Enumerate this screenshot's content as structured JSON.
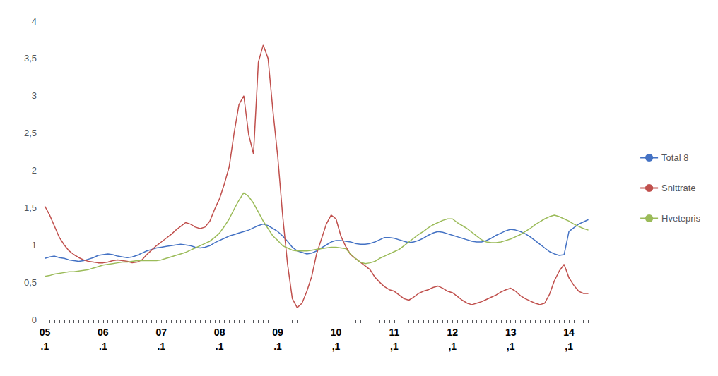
{
  "chart_data": {
    "type": "line",
    "categories": [
      "05\n.1",
      null,
      null,
      null,
      null,
      null,
      null,
      null,
      null,
      null,
      null,
      null,
      "06\n.1",
      null,
      null,
      null,
      null,
      null,
      null,
      null,
      null,
      null,
      null,
      null,
      "07\n.1",
      null,
      null,
      null,
      null,
      null,
      null,
      null,
      null,
      null,
      null,
      null,
      "08\n.1",
      null,
      null,
      null,
      null,
      null,
      null,
      null,
      null,
      null,
      null,
      null,
      "09\n.1",
      null,
      null,
      null,
      null,
      null,
      null,
      null,
      null,
      null,
      null,
      null,
      "10\n,1",
      null,
      null,
      null,
      null,
      null,
      null,
      null,
      null,
      null,
      null,
      null,
      "11\n,1",
      null,
      null,
      null,
      null,
      null,
      null,
      null,
      null,
      null,
      null,
      null,
      "12\n,1",
      null,
      null,
      null,
      null,
      null,
      null,
      null,
      null,
      null,
      null,
      null,
      "13\n,1",
      null,
      null,
      null,
      null,
      null,
      null,
      null,
      null,
      null,
      null,
      null,
      "14\n,1",
      null,
      null,
      null,
      null
    ],
    "series": [
      {
        "name": "Total 8",
        "color": "#4472C4",
        "values": [
          0.82,
          0.84,
          0.85,
          0.83,
          0.82,
          0.8,
          0.79,
          0.78,
          0.79,
          0.81,
          0.83,
          0.86,
          0.87,
          0.88,
          0.87,
          0.85,
          0.84,
          0.83,
          0.84,
          0.86,
          0.89,
          0.92,
          0.94,
          0.96,
          0.97,
          0.98,
          0.99,
          1.0,
          1.01,
          1.0,
          0.99,
          0.97,
          0.96,
          0.97,
          0.99,
          1.03,
          1.06,
          1.09,
          1.12,
          1.14,
          1.16,
          1.18,
          1.2,
          1.23,
          1.26,
          1.28,
          1.26,
          1.22,
          1.18,
          1.12,
          1.05,
          0.97,
          0.92,
          0.9,
          0.88,
          0.89,
          0.92,
          0.96,
          1.0,
          1.04,
          1.06,
          1.06,
          1.05,
          1.04,
          1.02,
          1.01,
          1.01,
          1.02,
          1.04,
          1.07,
          1.1,
          1.1,
          1.09,
          1.07,
          1.05,
          1.03,
          1.04,
          1.06,
          1.09,
          1.13,
          1.16,
          1.18,
          1.17,
          1.15,
          1.13,
          1.11,
          1.09,
          1.07,
          1.05,
          1.04,
          1.04,
          1.06,
          1.09,
          1.13,
          1.16,
          1.19,
          1.21,
          1.2,
          1.18,
          1.15,
          1.11,
          1.06,
          1.01,
          0.96,
          0.91,
          0.88,
          0.86,
          0.87,
          1.18,
          1.23,
          1.28,
          1.31,
          1.34
        ]
      },
      {
        "name": "Snittrate",
        "color": "#C0504D",
        "values": [
          1.52,
          1.4,
          1.25,
          1.1,
          1.0,
          0.92,
          0.87,
          0.83,
          0.8,
          0.78,
          0.77,
          0.76,
          0.76,
          0.77,
          0.79,
          0.8,
          0.79,
          0.78,
          0.76,
          0.77,
          0.8,
          0.87,
          0.93,
          0.99,
          1.04,
          1.09,
          1.14,
          1.2,
          1.25,
          1.3,
          1.28,
          1.24,
          1.22,
          1.24,
          1.32,
          1.48,
          1.62,
          1.82,
          2.05,
          2.5,
          2.88,
          3.0,
          2.48,
          2.22,
          3.45,
          3.68,
          3.5,
          2.8,
          2.18,
          1.4,
          0.75,
          0.28,
          0.16,
          0.22,
          0.38,
          0.58,
          0.88,
          1.08,
          1.28,
          1.4,
          1.35,
          1.12,
          0.98,
          0.87,
          0.82,
          0.77,
          0.72,
          0.67,
          0.57,
          0.5,
          0.44,
          0.4,
          0.38,
          0.33,
          0.28,
          0.26,
          0.3,
          0.35,
          0.38,
          0.4,
          0.43,
          0.45,
          0.42,
          0.38,
          0.36,
          0.31,
          0.26,
          0.22,
          0.2,
          0.22,
          0.24,
          0.27,
          0.3,
          0.33,
          0.37,
          0.4,
          0.42,
          0.38,
          0.32,
          0.28,
          0.25,
          0.22,
          0.2,
          0.22,
          0.34,
          0.52,
          0.65,
          0.74,
          0.56,
          0.46,
          0.38,
          0.35,
          0.35
        ]
      },
      {
        "name": "Hvetepris",
        "color": "#9BBB59",
        "values": [
          0.58,
          0.59,
          0.61,
          0.62,
          0.63,
          0.64,
          0.64,
          0.65,
          0.66,
          0.67,
          0.69,
          0.71,
          0.73,
          0.74,
          0.75,
          0.76,
          0.77,
          0.77,
          0.78,
          0.79,
          0.79,
          0.79,
          0.79,
          0.79,
          0.8,
          0.82,
          0.84,
          0.86,
          0.88,
          0.9,
          0.93,
          0.96,
          0.99,
          1.02,
          1.05,
          1.1,
          1.16,
          1.25,
          1.35,
          1.48,
          1.6,
          1.7,
          1.65,
          1.56,
          1.44,
          1.32,
          1.22,
          1.12,
          1.06,
          0.99,
          0.96,
          0.93,
          0.92,
          0.92,
          0.92,
          0.93,
          0.94,
          0.95,
          0.96,
          0.97,
          0.97,
          0.96,
          0.95,
          0.88,
          0.82,
          0.77,
          0.75,
          0.76,
          0.78,
          0.82,
          0.85,
          0.88,
          0.91,
          0.94,
          0.99,
          1.04,
          1.09,
          1.14,
          1.18,
          1.23,
          1.27,
          1.3,
          1.33,
          1.35,
          1.35,
          1.3,
          1.26,
          1.22,
          1.17,
          1.12,
          1.07,
          1.04,
          1.03,
          1.03,
          1.04,
          1.06,
          1.08,
          1.11,
          1.14,
          1.18,
          1.22,
          1.27,
          1.31,
          1.35,
          1.38,
          1.4,
          1.38,
          1.35,
          1.32,
          1.28,
          1.25,
          1.22,
          1.2
        ]
      }
    ],
    "ylim": [
      0,
      4.0
    ],
    "yticks": [
      0,
      {
        "value": 0.5,
        "label": "0,5"
      },
      1,
      {
        "value": 1.5,
        "label": "1,5"
      },
      2,
      {
        "value": 2.5,
        "label": "2,5"
      },
      3,
      {
        "value": 3.5,
        "label": "3,5"
      },
      4
    ],
    "grid": false,
    "legend": "right"
  }
}
